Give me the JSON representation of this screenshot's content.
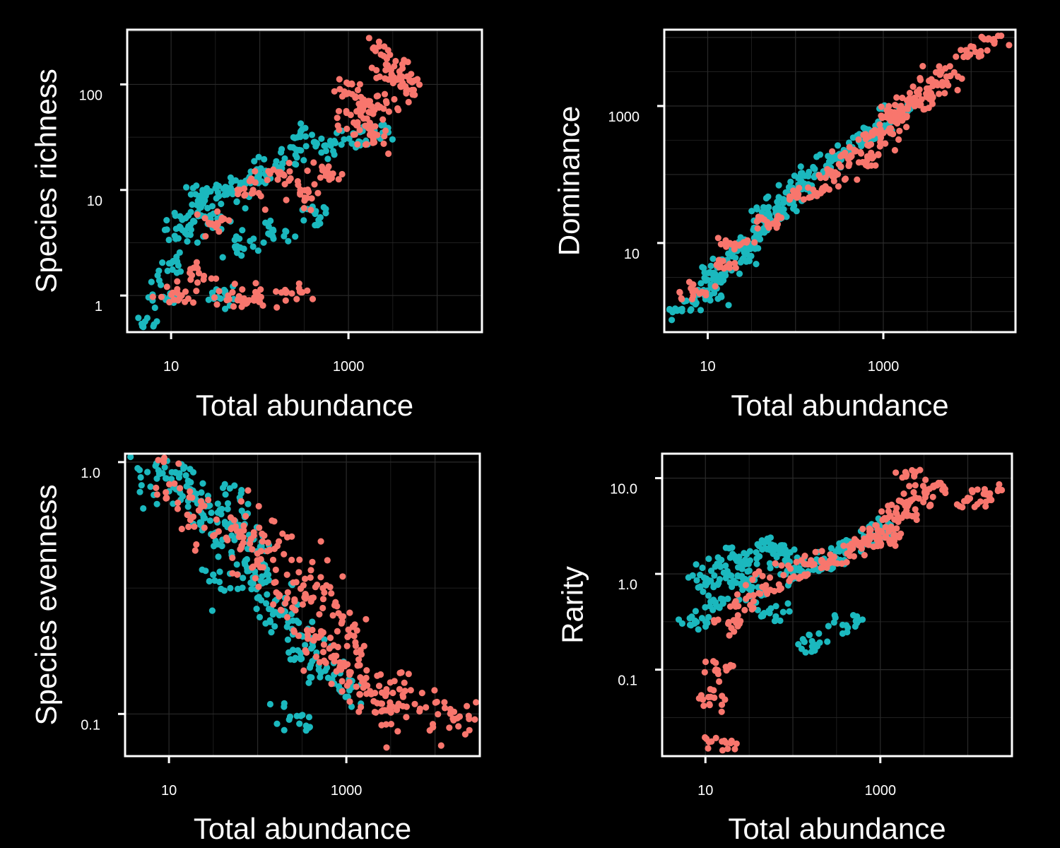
{
  "colors": {
    "background": "#000000",
    "groupA": "#F8766D",
    "groupB": "#1BB8BE",
    "axes": "#FFFFFF",
    "grid": "#2a2a2a"
  },
  "chart_data": [
    {
      "type": "scatter",
      "xlabel": "Total abundance",
      "ylabel": "Species richness",
      "xscale": "log",
      "yscale": "log",
      "xlim": [
        3.2,
        32000
      ],
      "ylim": [
        0.45,
        330
      ],
      "xticks": [
        10,
        1000
      ],
      "xtick_labels": [
        "10",
        "1000"
      ],
      "yticks": [
        1,
        10,
        100
      ],
      "ytick_labels": [
        "1",
        "10",
        "100"
      ],
      "grid": true,
      "legend": "none",
      "series": [
        {
          "color": "#F8766D",
          "points": [
            [
              1200,
              45
            ],
            [
              1800,
              30
            ],
            [
              2500,
              70
            ],
            [
              900,
              90
            ],
            [
              3000,
              120
            ],
            [
              5000,
              90
            ],
            [
              4000,
              130
            ],
            [
              2200,
              200
            ],
            [
              600,
              15
            ],
            [
              300,
              9
            ],
            [
              150,
              14
            ],
            [
              80,
              10
            ],
            [
              30,
              5
            ],
            [
              20,
              1.5
            ],
            [
              60,
              1
            ],
            [
              100,
              1
            ],
            [
              250,
              1
            ],
            [
              12,
              1
            ],
            [
              1400,
              60
            ],
            [
              1700,
              40
            ]
          ]
        },
        {
          "color": "#1BB8BE",
          "points": [
            [
              5,
              0.5
            ],
            [
              8,
              1
            ],
            [
              10,
              2
            ],
            [
              12,
              4
            ],
            [
              15,
              5
            ],
            [
              20,
              8
            ],
            [
              30,
              10
            ],
            [
              50,
              9
            ],
            [
              80,
              12
            ],
            [
              100,
              15
            ],
            [
              200,
              20
            ],
            [
              300,
              30
            ],
            [
              500,
              25
            ],
            [
              1000,
              28
            ],
            [
              2000,
              35
            ],
            [
              400,
              6
            ],
            [
              150,
              4
            ],
            [
              60,
              3
            ],
            [
              25,
              6
            ],
            [
              40,
              1
            ]
          ]
        }
      ]
    },
    {
      "type": "scatter",
      "xlabel": "Total abundance",
      "ylabel": "Dominance",
      "xscale": "log",
      "yscale": "log",
      "xlim": [
        3.2,
        32000
      ],
      "ylim": [
        0.5,
        13000
      ],
      "xticks": [
        10,
        1000
      ],
      "xtick_labels": [
        "10",
        "1000"
      ],
      "yticks": [
        10,
        1000
      ],
      "ytick_labels": [
        "10",
        "1000"
      ],
      "grid": true,
      "legend": "none",
      "series": [
        {
          "color": "#F8766D",
          "points": [
            [
              20,
              10
            ],
            [
              50,
              20
            ],
            [
              100,
              50
            ],
            [
              300,
              100
            ],
            [
              500,
              200
            ],
            [
              1000,
              400
            ],
            [
              1500,
              700
            ],
            [
              2000,
              1000
            ],
            [
              3000,
              1500
            ],
            [
              5000,
              3000
            ],
            [
              10000,
              6000
            ],
            [
              20000,
              10000
            ],
            [
              800,
              300
            ],
            [
              2500,
              1200
            ],
            [
              7,
              2
            ],
            [
              15,
              5
            ],
            [
              200,
              60
            ],
            [
              4000,
              2000
            ],
            [
              1200,
              800
            ],
            [
              600,
              150
            ]
          ]
        },
        {
          "color": "#1BB8BE",
          "points": [
            [
              5,
              1
            ],
            [
              8,
              1.5
            ],
            [
              10,
              2
            ],
            [
              15,
              4
            ],
            [
              20,
              6
            ],
            [
              30,
              10
            ],
            [
              50,
              25
            ],
            [
              80,
              40
            ],
            [
              100,
              60
            ],
            [
              200,
              120
            ],
            [
              300,
              180
            ],
            [
              500,
              300
            ],
            [
              1000,
              500
            ],
            [
              1500,
              900
            ],
            [
              40,
              15
            ],
            [
              60,
              30
            ],
            [
              12,
              3
            ],
            [
              25,
              8
            ],
            [
              150,
              90
            ],
            [
              700,
              400
            ]
          ]
        }
      ]
    },
    {
      "type": "scatter",
      "xlabel": "Total abundance",
      "ylabel": "Species evenness",
      "xscale": "log",
      "yscale": "log",
      "xlim": [
        3.2,
        32000
      ],
      "ylim": [
        0.068,
        1.08
      ],
      "xticks": [
        10,
        1000
      ],
      "xtick_labels": [
        "10",
        "1000"
      ],
      "yticks": [
        0.1,
        1.0
      ],
      "ytick_labels": [
        "0.1",
        "1.0"
      ],
      "grid": true,
      "legend": "none",
      "series": [
        {
          "color": "#F8766D",
          "points": [
            [
              10,
              0.8
            ],
            [
              20,
              0.6
            ],
            [
              50,
              0.5
            ],
            [
              100,
              0.4
            ],
            [
              200,
              0.3
            ],
            [
              300,
              0.25
            ],
            [
              500,
              0.2
            ],
            [
              800,
              0.18
            ],
            [
              1000,
              0.15
            ],
            [
              1500,
              0.13
            ],
            [
              2000,
              0.12
            ],
            [
              3000,
              0.1
            ],
            [
              5000,
              0.12
            ],
            [
              10000,
              0.1
            ],
            [
              20000,
              0.1
            ],
            [
              400,
              0.35
            ],
            [
              700,
              0.28
            ],
            [
              1200,
              0.2
            ],
            [
              150,
              0.45
            ],
            [
              80,
              0.55
            ]
          ]
        },
        {
          "color": "#1BB8BE",
          "points": [
            [
              4,
              1
            ],
            [
              6,
              0.95
            ],
            [
              10,
              0.9
            ],
            [
              15,
              0.85
            ],
            [
              20,
              0.75
            ],
            [
              30,
              0.6
            ],
            [
              50,
              0.5
            ],
            [
              80,
              0.45
            ],
            [
              100,
              0.4
            ],
            [
              150,
              0.3
            ],
            [
              200,
              0.25
            ],
            [
              300,
              0.2
            ],
            [
              500,
              0.15
            ],
            [
              1000,
              0.12
            ],
            [
              250,
              0.09
            ],
            [
              40,
              0.35
            ],
            [
              60,
              0.65
            ],
            [
              120,
              0.35
            ],
            [
              400,
              0.18
            ],
            [
              25,
              0.7
            ]
          ]
        }
      ]
    },
    {
      "type": "scatter",
      "xlabel": "Total abundance",
      "ylabel": "Rarity",
      "xscale": "log",
      "yscale": "log",
      "xlim": [
        3.2,
        32000
      ],
      "ylim": [
        0.0125,
        18
      ],
      "xticks": [
        10,
        1000
      ],
      "xtick_labels": [
        "10",
        "1000"
      ],
      "yticks": [
        0.1,
        1.0,
        10.0
      ],
      "ytick_labels": [
        "0.1",
        "1.0",
        "10.0"
      ],
      "grid": true,
      "legend": "none",
      "series": [
        {
          "color": "#F8766D",
          "points": [
            [
              1000,
              3
            ],
            [
              1500,
              4
            ],
            [
              2000,
              5
            ],
            [
              3000,
              6
            ],
            [
              5000,
              8
            ],
            [
              10000,
              6
            ],
            [
              20000,
              7
            ],
            [
              800,
              2
            ],
            [
              500,
              2
            ],
            [
              300,
              1.5
            ],
            [
              200,
              1.2
            ],
            [
              100,
              1
            ],
            [
              50,
              0.8
            ],
            [
              30,
              0.5
            ],
            [
              20,
              0.3
            ],
            [
              15,
              0.1
            ],
            [
              12,
              0.05
            ],
            [
              14,
              0.017
            ],
            [
              2500,
              10
            ],
            [
              1200,
              2.5
            ]
          ]
        },
        {
          "color": "#1BB8BE",
          "points": [
            [
              8,
              0.3
            ],
            [
              10,
              0.8
            ],
            [
              12,
              1
            ],
            [
              20,
              1.5
            ],
            [
              30,
              1.2
            ],
            [
              50,
              2
            ],
            [
              80,
              1.5
            ],
            [
              100,
              1
            ],
            [
              200,
              1.2
            ],
            [
              300,
              1.5
            ],
            [
              500,
              2
            ],
            [
              800,
              2.5
            ],
            [
              1000,
              3
            ],
            [
              60,
              0.4
            ],
            [
              150,
              0.2
            ],
            [
              400,
              0.3
            ],
            [
              40,
              0.7
            ],
            [
              15,
              0.5
            ],
            [
              25,
              0.9
            ],
            [
              70,
              1.8
            ]
          ]
        }
      ]
    }
  ]
}
